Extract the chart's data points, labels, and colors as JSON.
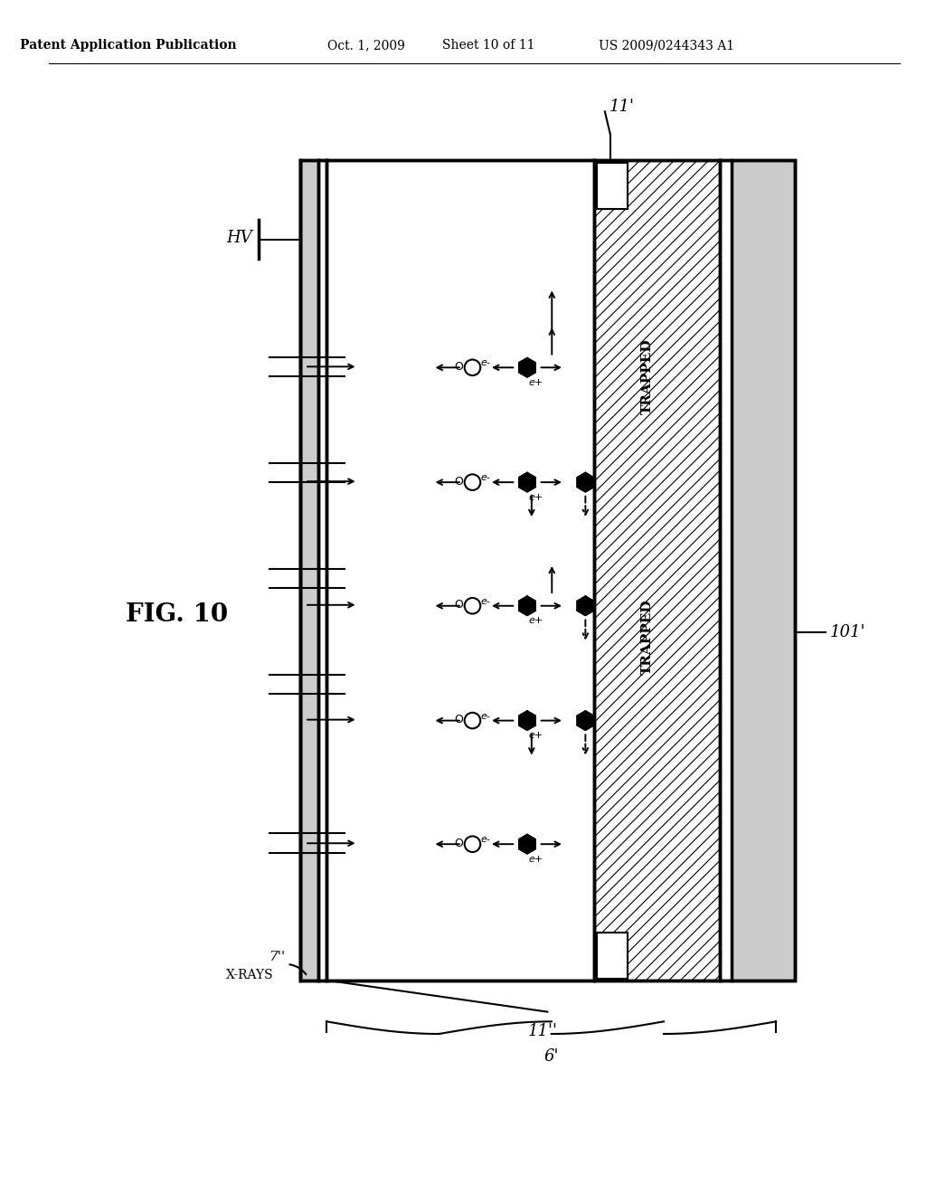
{
  "title_header": "Patent Application Publication",
  "date_header": "Oct. 1, 2009",
  "sheet_header": "Sheet 10 of 11",
  "patent_header": "US 2009/0244343 A1",
  "fig_label": "FIG. 10",
  "background_color": "#ffffff",
  "line_color": "#000000",
  "label_7": "7'",
  "label_xrays": "X-RAYS",
  "label_6": "6'",
  "label_11_top": "11'",
  "label_11_bot": "11'",
  "label_101": "101'",
  "label_HV": "HV",
  "label_trapped1": "TRAPPED",
  "label_trapped2": "TRAPPED"
}
